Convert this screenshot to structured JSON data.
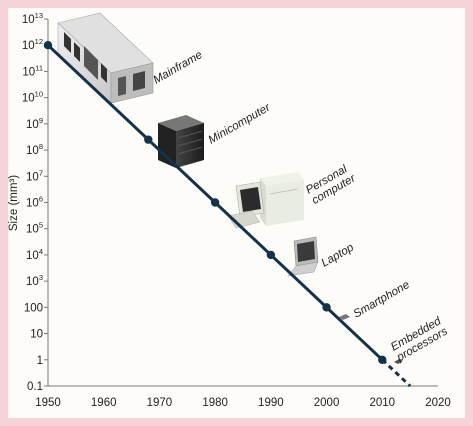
{
  "chart_data": {
    "type": "line",
    "ylabel": "Size (mm³)",
    "xlabel": "",
    "title": "",
    "x_scale": "linear",
    "y_scale": "log",
    "xlim": [
      1950,
      2020
    ],
    "ylim": [
      0.1,
      10000000000000
    ],
    "x_ticks": [
      "1950",
      "1960",
      "1970",
      "1980",
      "1990",
      "2000",
      "2010",
      "2020"
    ],
    "y_ticks": [
      {
        "value": 10000000000000,
        "base": "10",
        "exp": "13"
      },
      {
        "value": 1000000000000,
        "base": "10",
        "exp": "12"
      },
      {
        "value": 100000000000,
        "base": "10",
        "exp": "11"
      },
      {
        "value": 10000000000,
        "base": "10",
        "exp": "10"
      },
      {
        "value": 1000000000,
        "base": "10",
        "exp": "9"
      },
      {
        "value": 100000000,
        "base": "10",
        "exp": "8"
      },
      {
        "value": 10000000,
        "base": "10",
        "exp": "7"
      },
      {
        "value": 1000000,
        "base": "10",
        "exp": "6"
      },
      {
        "value": 100000,
        "base": "10",
        "exp": "5"
      },
      {
        "value": 10000,
        "base": "10",
        "exp": "4"
      },
      {
        "value": 1000,
        "base": "10",
        "exp": "3"
      },
      {
        "value": 100,
        "base": "100",
        "exp": ""
      },
      {
        "value": 10,
        "base": "10",
        "exp": ""
      },
      {
        "value": 1,
        "base": "1",
        "exp": ""
      },
      {
        "value": 0.1,
        "base": "0.1",
        "exp": ""
      }
    ],
    "points": [
      {
        "x": 1950,
        "y": 1000000000000,
        "label": "Mainframe"
      },
      {
        "x": 1968,
        "y": 250000000,
        "label": "Minicomputer"
      },
      {
        "x": 1980,
        "y": 1000000,
        "label": "Personal computer"
      },
      {
        "x": 1990,
        "y": 10000,
        "label": "Laptop"
      },
      {
        "x": 2000,
        "y": 100,
        "label": "Smartphone"
      },
      {
        "x": 2010,
        "y": 1,
        "label": "Embedded processors"
      }
    ],
    "trend_extension": {
      "x": [
        2010,
        2015
      ],
      "y": [
        1,
        0.1
      ],
      "style": "dashed"
    },
    "grid": false,
    "colors": {
      "line": "#14324a",
      "point": "#14324a",
      "background": "#fdfcf8",
      "border": "#f6d3d9"
    }
  }
}
